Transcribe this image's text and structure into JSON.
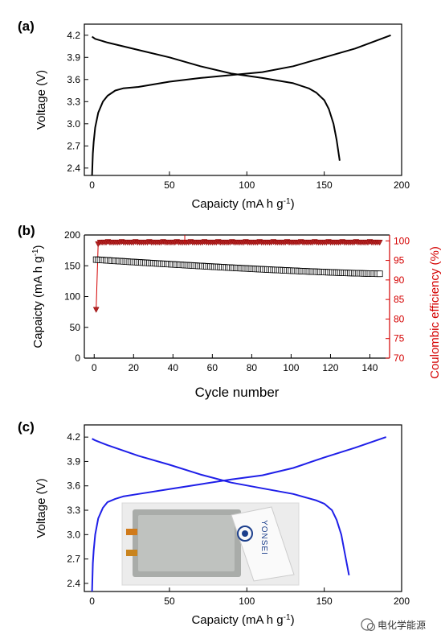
{
  "chart_data": [
    {
      "type": "line",
      "panel_label": "(a)",
      "xlabel": "Capaicty (mA h g",
      "xlabel_sup": "-1",
      "xlabel_end": ")",
      "ylabel": "Voltage (V)",
      "xlim": [
        -5,
        200
      ],
      "ylim": [
        2.3,
        4.35
      ],
      "xticks": [
        0,
        50,
        100,
        150,
        200
      ],
      "yticks": [
        2.4,
        2.7,
        3.0,
        3.3,
        3.6,
        3.9,
        4.2
      ],
      "ytick_labels": [
        "2.4",
        "2.7",
        "3.0",
        "3.3",
        "3.6",
        "3.9",
        "4.2"
      ],
      "color": "#000000",
      "series": [
        {
          "x": [
            0,
            0.5,
            1,
            2,
            4,
            7,
            10,
            15,
            20,
            30,
            50,
            70,
            90,
            110,
            130,
            150,
            170,
            193
          ],
          "y": [
            2.3,
            2.6,
            2.75,
            2.95,
            3.15,
            3.3,
            3.38,
            3.45,
            3.48,
            3.5,
            3.57,
            3.62,
            3.66,
            3.7,
            3.78,
            3.9,
            4.02,
            4.2
          ]
        },
        {
          "x": [
            0,
            2,
            10,
            30,
            50,
            70,
            90,
            110,
            130,
            140,
            145,
            150,
            153,
            156,
            158,
            160
          ],
          "y": [
            4.18,
            4.15,
            4.1,
            4.0,
            3.9,
            3.78,
            3.68,
            3.62,
            3.55,
            3.48,
            3.42,
            3.32,
            3.2,
            3.0,
            2.78,
            2.5
          ]
        }
      ]
    },
    {
      "type": "scatter",
      "panel_label": "(b)",
      "xlabel": "Cycle number",
      "ylabel": "Capaicty (mA h g",
      "ylabel_sup": "-1",
      "ylabel_end": ")",
      "y2label": "Coulombic efficiency (%)",
      "xlim": [
        -5,
        150
      ],
      "ylim": [
        0,
        200
      ],
      "y2lim": [
        70,
        101.5
      ],
      "xticks": [
        0,
        20,
        40,
        60,
        80,
        100,
        120,
        140
      ],
      "yticks": [
        0,
        50,
        100,
        150,
        200
      ],
      "y2ticks": [
        70,
        75,
        80,
        85,
        90,
        95,
        100
      ],
      "capacity_color": "#000000",
      "efficiency_color": "#d40000",
      "capacity": {
        "x_start": 1,
        "x_end": 145,
        "y_start": 160,
        "y_end": 137
      },
      "efficiency": {
        "first_point": [
          1,
          82.4
        ],
        "second_point": [
          2,
          99.2
        ],
        "plateau": 99.6,
        "x_end": 145
      },
      "spike": {
        "x": 46,
        "y": 101.5
      }
    },
    {
      "type": "line",
      "panel_label": "(c)",
      "xlabel": "Capaicty (mA h g",
      "xlabel_sup": "-1",
      "xlabel_end": ")",
      "ylabel": "Voltage (V)",
      "xlim": [
        -5,
        200
      ],
      "ylim": [
        2.3,
        4.35
      ],
      "xticks": [
        0,
        50,
        100,
        150,
        200
      ],
      "yticks": [
        2.4,
        2.7,
        3.0,
        3.3,
        3.6,
        3.9,
        4.2
      ],
      "ytick_labels": [
        "2.4",
        "2.7",
        "3.0",
        "3.3",
        "3.6",
        "3.9",
        "4.2"
      ],
      "color": "#1f1fe8",
      "inset_text": "YONSEI",
      "series": [
        {
          "x": [
            0,
            0.5,
            1,
            2,
            4,
            7,
            10,
            15,
            20,
            30,
            50,
            70,
            90,
            110,
            130,
            150,
            170,
            190
          ],
          "y": [
            2.3,
            2.65,
            2.8,
            3.0,
            3.2,
            3.33,
            3.4,
            3.44,
            3.47,
            3.5,
            3.56,
            3.62,
            3.68,
            3.73,
            3.82,
            3.95,
            4.07,
            4.2
          ]
        },
        {
          "x": [
            0,
            2,
            10,
            30,
            50,
            70,
            90,
            110,
            130,
            145,
            150,
            155,
            158,
            161,
            163,
            166
          ],
          "y": [
            4.18,
            4.16,
            4.1,
            3.97,
            3.86,
            3.74,
            3.64,
            3.57,
            3.5,
            3.42,
            3.38,
            3.3,
            3.18,
            3.0,
            2.8,
            2.5
          ]
        }
      ]
    }
  ],
  "watermark": "电化学能源"
}
